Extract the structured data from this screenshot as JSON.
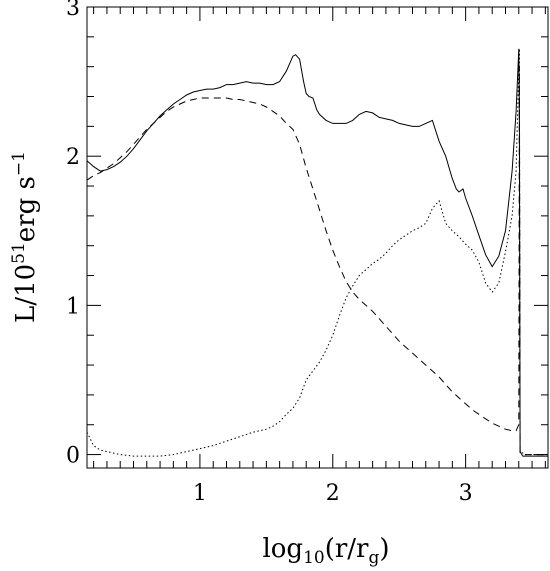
{
  "chart_data": {
    "type": "line",
    "title": "",
    "xlabel": {
      "base": "log",
      "sub": "10",
      "open": "(r/r",
      "sub2": "g",
      "close": ")"
    },
    "ylabel": {
      "main": "L/10",
      "sup": "51",
      "unit": "erg s",
      "sup2": "−1"
    },
    "xlim": [
      0.15,
      3.62
    ],
    "ylim": [
      -0.09,
      3.0
    ],
    "x_ticks": [
      1,
      2,
      3
    ],
    "x_tick_labels": [
      "1",
      "2",
      "3"
    ],
    "y_ticks": [
      0,
      1,
      2,
      3
    ],
    "y_tick_labels": [
      "0",
      "1",
      "2",
      "3"
    ],
    "x_minor_step": 0.1,
    "y_minor_step": 0.2,
    "grid": false,
    "legend": "none",
    "series": [
      {
        "style": "solid",
        "x": [
          0.15,
          0.2,
          0.25,
          0.3,
          0.35,
          0.4,
          0.45,
          0.5,
          0.55,
          0.6,
          0.65,
          0.7,
          0.75,
          0.8,
          0.85,
          0.9,
          0.95,
          1.0,
          1.05,
          1.1,
          1.15,
          1.2,
          1.25,
          1.3,
          1.35,
          1.4,
          1.45,
          1.5,
          1.55,
          1.6,
          1.65,
          1.7,
          1.72,
          1.75,
          1.78,
          1.8,
          1.82,
          1.85,
          1.88,
          1.9,
          1.95,
          2.0,
          2.05,
          2.1,
          2.15,
          2.2,
          2.25,
          2.3,
          2.35,
          2.4,
          2.45,
          2.5,
          2.55,
          2.6,
          2.65,
          2.7,
          2.75,
          2.8,
          2.85,
          2.9,
          2.93,
          2.95,
          2.98,
          3.0,
          3.05,
          3.1,
          3.15,
          3.2,
          3.25,
          3.3,
          3.35,
          3.38,
          3.4,
          3.405,
          3.41,
          3.43,
          3.45,
          3.5,
          3.55,
          3.62
        ],
        "y": [
          1.97,
          1.93,
          1.9,
          1.91,
          1.93,
          1.96,
          2.0,
          2.05,
          2.11,
          2.17,
          2.22,
          2.27,
          2.31,
          2.35,
          2.38,
          2.41,
          2.43,
          2.44,
          2.45,
          2.45,
          2.46,
          2.48,
          2.48,
          2.49,
          2.5,
          2.49,
          2.49,
          2.48,
          2.48,
          2.5,
          2.57,
          2.67,
          2.68,
          2.65,
          2.5,
          2.42,
          2.4,
          2.39,
          2.31,
          2.28,
          2.24,
          2.22,
          2.22,
          2.22,
          2.24,
          2.28,
          2.3,
          2.29,
          2.26,
          2.25,
          2.24,
          2.22,
          2.21,
          2.2,
          2.2,
          2.22,
          2.24,
          2.1,
          2.0,
          1.85,
          1.78,
          1.76,
          1.78,
          1.72,
          1.6,
          1.47,
          1.34,
          1.26,
          1.33,
          1.5,
          1.9,
          2.3,
          2.72,
          2.2,
          0.02,
          -0.01,
          -0.01,
          -0.01,
          -0.01,
          -0.01
        ]
      },
      {
        "style": "dashed",
        "x": [
          0.15,
          0.2,
          0.25,
          0.3,
          0.35,
          0.4,
          0.45,
          0.5,
          0.55,
          0.6,
          0.65,
          0.7,
          0.75,
          0.8,
          0.85,
          0.9,
          0.95,
          1.0,
          1.05,
          1.1,
          1.15,
          1.2,
          1.25,
          1.3,
          1.35,
          1.4,
          1.45,
          1.5,
          1.55,
          1.6,
          1.65,
          1.7,
          1.75,
          1.8,
          1.85,
          1.9,
          1.95,
          2.0,
          2.05,
          2.1,
          2.15,
          2.2,
          2.25,
          2.3,
          2.35,
          2.4,
          2.45,
          2.5,
          2.55,
          2.6,
          2.65,
          2.7,
          2.75,
          2.8,
          2.85,
          2.9,
          2.95,
          3.0,
          3.05,
          3.1,
          3.15,
          3.2,
          3.25,
          3.3,
          3.35,
          3.38,
          3.4,
          3.405,
          3.41,
          3.45,
          3.5,
          3.62
        ],
        "y": [
          1.84,
          1.87,
          1.89,
          1.92,
          1.95,
          1.99,
          2.03,
          2.08,
          2.13,
          2.18,
          2.22,
          2.26,
          2.3,
          2.33,
          2.35,
          2.37,
          2.38,
          2.39,
          2.39,
          2.39,
          2.39,
          2.39,
          2.38,
          2.38,
          2.37,
          2.36,
          2.35,
          2.33,
          2.3,
          2.27,
          2.22,
          2.18,
          2.08,
          1.92,
          1.78,
          1.64,
          1.5,
          1.37,
          1.26,
          1.16,
          1.09,
          1.04,
          1.0,
          0.96,
          0.91,
          0.86,
          0.81,
          0.76,
          0.72,
          0.68,
          0.64,
          0.6,
          0.56,
          0.52,
          0.47,
          0.42,
          0.38,
          0.34,
          0.3,
          0.27,
          0.24,
          0.21,
          0.19,
          0.17,
          0.16,
          0.16,
          0.2,
          2.6,
          0.01,
          0.0,
          0.0,
          0.0
        ]
      },
      {
        "style": "dotted",
        "x": [
          0.15,
          0.2,
          0.25,
          0.3,
          0.4,
          0.5,
          0.6,
          0.7,
          0.8,
          0.9,
          1.0,
          1.1,
          1.2,
          1.3,
          1.4,
          1.5,
          1.55,
          1.6,
          1.65,
          1.7,
          1.75,
          1.8,
          1.85,
          1.9,
          1.95,
          2.0,
          2.05,
          2.1,
          2.15,
          2.2,
          2.25,
          2.3,
          2.35,
          2.4,
          2.45,
          2.5,
          2.55,
          2.6,
          2.65,
          2.7,
          2.75,
          2.8,
          2.85,
          2.9,
          2.95,
          3.0,
          3.05,
          3.1,
          3.15,
          3.2,
          3.25,
          3.3,
          3.35,
          3.38,
          3.4,
          3.405,
          3.41,
          3.45,
          3.5,
          3.62
        ],
        "y": [
          0.15,
          0.06,
          0.03,
          0.02,
          0.0,
          -0.01,
          -0.01,
          -0.01,
          0.0,
          0.02,
          0.04,
          0.06,
          0.09,
          0.12,
          0.15,
          0.17,
          0.19,
          0.22,
          0.27,
          0.31,
          0.38,
          0.5,
          0.56,
          0.62,
          0.7,
          0.8,
          0.93,
          1.05,
          1.13,
          1.2,
          1.24,
          1.28,
          1.31,
          1.35,
          1.4,
          1.44,
          1.47,
          1.5,
          1.52,
          1.55,
          1.65,
          1.7,
          1.55,
          1.5,
          1.46,
          1.41,
          1.37,
          1.29,
          1.15,
          1.09,
          1.15,
          1.36,
          1.6,
          1.9,
          2.6,
          2.72,
          0.02,
          0.0,
          0.0,
          0.0
        ]
      }
    ]
  }
}
